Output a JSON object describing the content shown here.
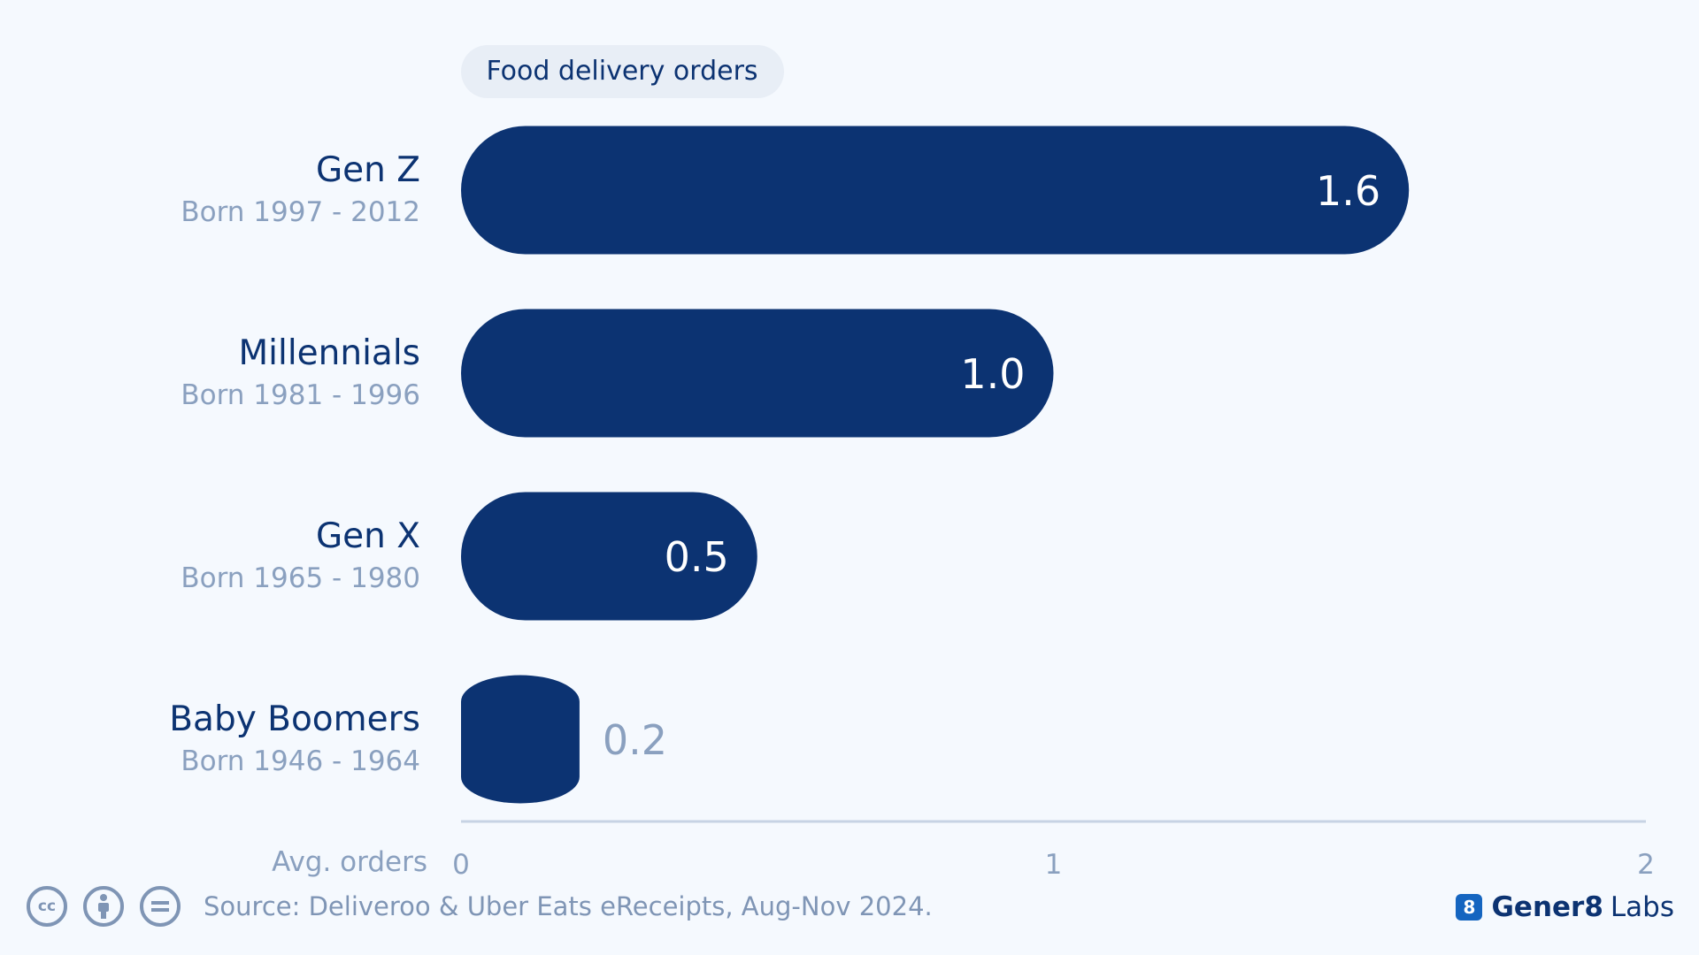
{
  "chart_data": {
    "type": "bar",
    "orientation": "horizontal",
    "legend_title": "Food delivery orders",
    "categories": [
      "Gen Z",
      "Millennials",
      "Gen X",
      "Baby Boomers"
    ],
    "category_subtitles": [
      "Born 1997 - 2012",
      "Born 1981 - 1996",
      "Born 1965 - 1980",
      "Born 1946 - 1964"
    ],
    "values": [
      1.6,
      1.0,
      0.5,
      0.2
    ],
    "value_labels": [
      "1.6",
      "1.0",
      "0.5",
      "0.2"
    ],
    "xlabel": "Avg. orders",
    "xlim": [
      0,
      2
    ],
    "xticks": [
      "0",
      "1",
      "2"
    ],
    "grid": false,
    "bar_color": "#0c3372"
  },
  "footer": {
    "icons": [
      "cc-icon",
      "attribution-icon",
      "no-derivatives-icon"
    ],
    "source": "Source: Deliveroo & Uber Eats eReceipts, Aug-Nov 2024."
  },
  "brand": {
    "logo_glyph": "8",
    "name_bold": "Gener8",
    "name_rest": "Labs"
  }
}
